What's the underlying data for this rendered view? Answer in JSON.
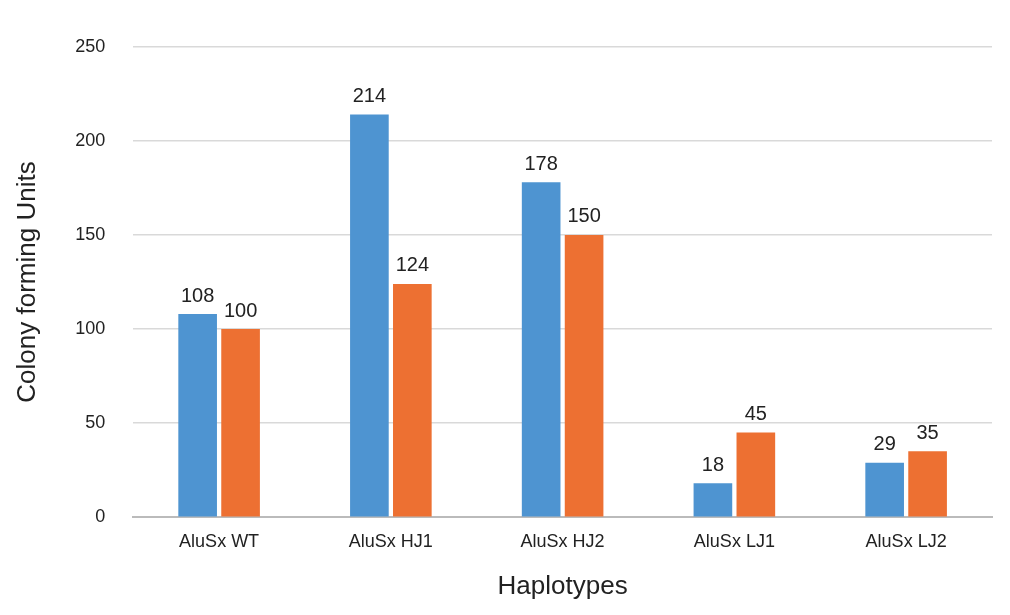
{
  "chart_data": {
    "type": "bar",
    "xlabel": "Haplotypes",
    "ylabel": "Colony forming Units",
    "categories": [
      "AluSx WT",
      "AluSx HJ1",
      "AluSx HJ2",
      "AluSx LJ1",
      "AluSx LJ2"
    ],
    "series": [
      {
        "color": "#4e94d1",
        "values": [
          108,
          214,
          178,
          18,
          29
        ]
      },
      {
        "color": "#ed7032",
        "values": [
          100,
          124,
          150,
          45,
          35
        ]
      }
    ],
    "ylim": [
      0,
      250
    ],
    "yticks": [
      0,
      50,
      100,
      150,
      200,
      250
    ],
    "grid": "y",
    "data_labels": true,
    "legend": false
  }
}
